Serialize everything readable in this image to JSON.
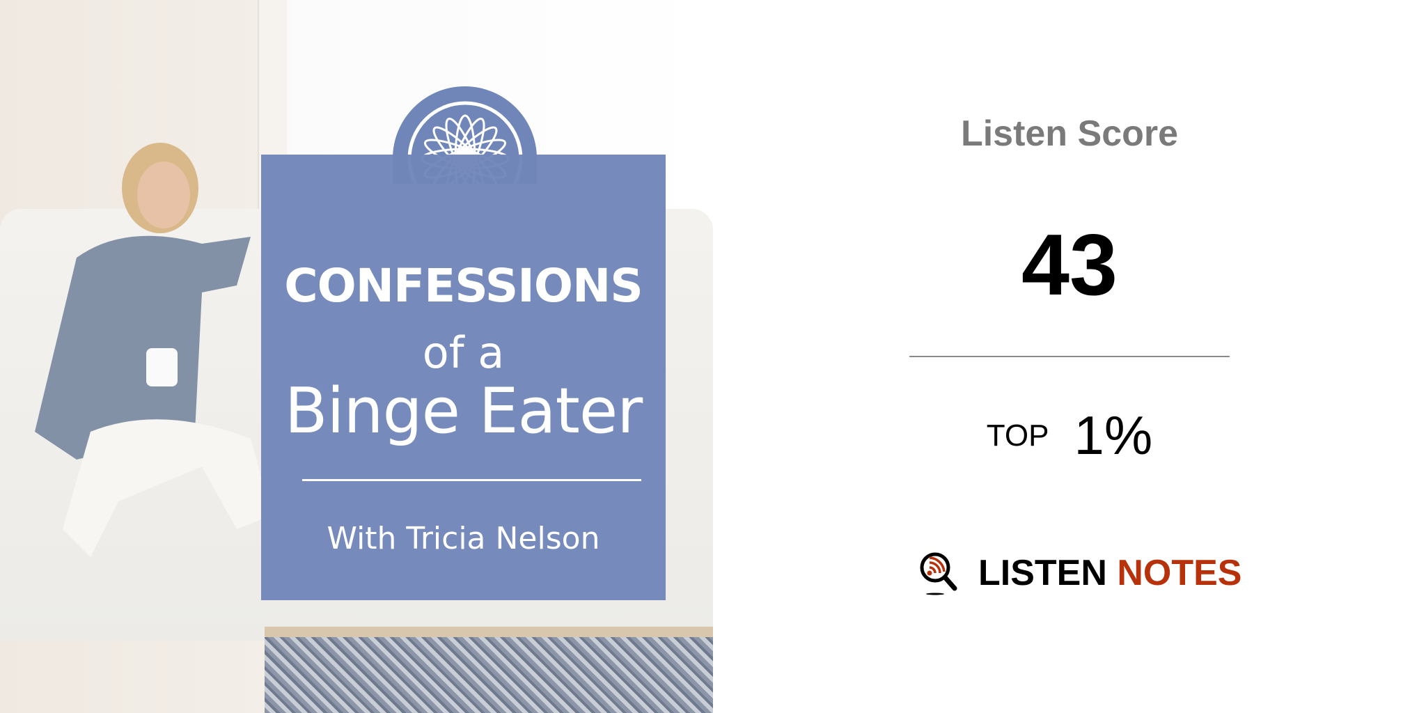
{
  "cover": {
    "title_line1": "CONFESSIONS",
    "title_line2": "of a",
    "title_line3": "Binge Eater",
    "host": "With Tricia Nelson",
    "panel_color": "#7086b9"
  },
  "score_card": {
    "label": "Listen Score",
    "score": "43",
    "rank_label": "TOP",
    "rank_value": "1%"
  },
  "brand": {
    "name_part1": "LISTEN",
    "name_part2": "NOTES",
    "accent_color": "#b7320b",
    "icon": "magnifier-rss-icon"
  }
}
